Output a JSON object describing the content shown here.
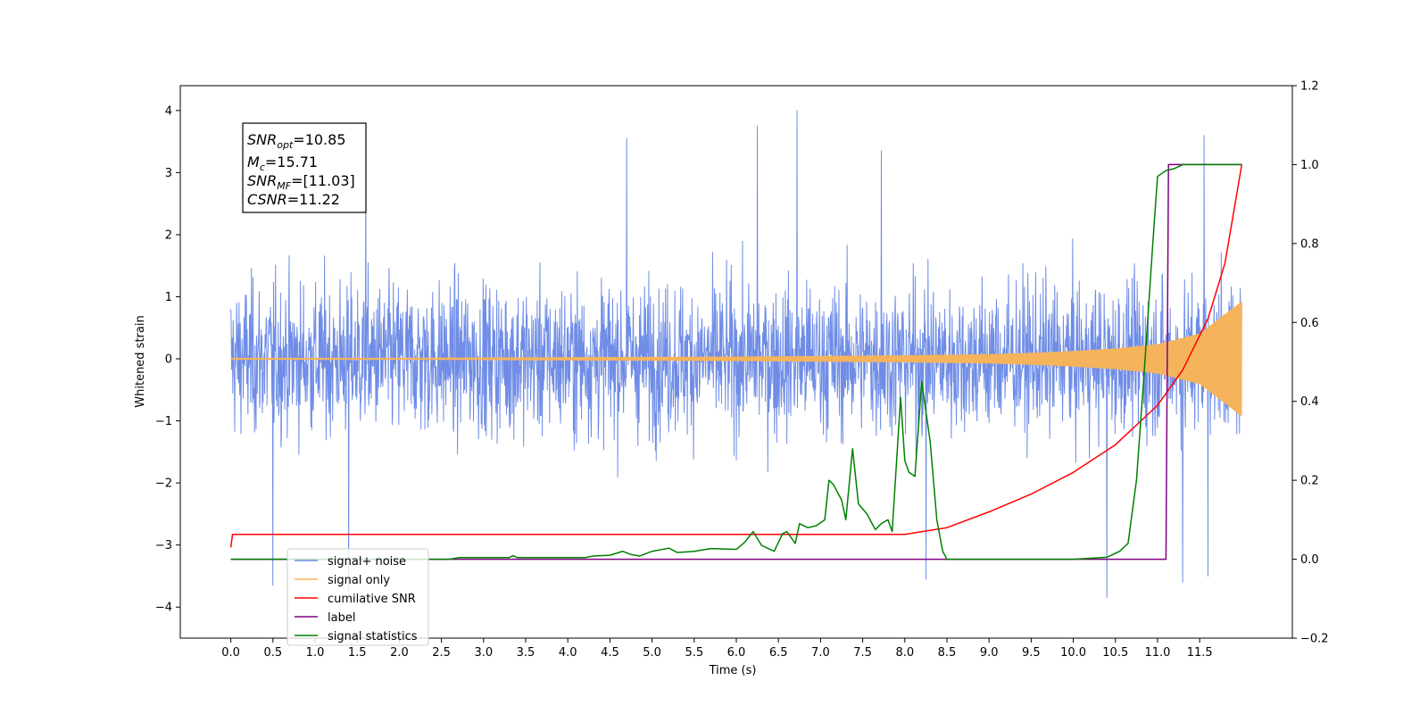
{
  "chart_data": {
    "type": "line",
    "title": "",
    "xlabel": "Time (s)",
    "ylabel": "Whitened strain",
    "ylabel_right": "",
    "xlim": [
      -0.6,
      12.6
    ],
    "ylim": [
      -4.5,
      4.4
    ],
    "ylim_right": [
      -0.2,
      1.2
    ],
    "grid": false,
    "legend_placement": "lower-left",
    "x_ticks": [
      "0.0",
      "0.5",
      "1.0",
      "1.5",
      "2.0",
      "2.5",
      "3.0",
      "3.5",
      "4.0",
      "4.5",
      "5.0",
      "5.5",
      "6.0",
      "6.5",
      "7.0",
      "7.5",
      "8.0",
      "8.5",
      "9.0",
      "9.5",
      "10.0",
      "10.5",
      "11.0",
      "11.5"
    ],
    "y_ticks_left": [
      "4",
      "3",
      "2",
      "1",
      "0",
      "−1",
      "−2",
      "−3",
      "−4"
    ],
    "y_ticks_right": [
      "1.2",
      "1.0",
      "0.8",
      "0.6",
      "0.4",
      "0.2",
      "0.0",
      "−0.2"
    ],
    "annotation": {
      "snr_opt": "=10.85",
      "mc": "=15.71",
      "snr_mf": "=[11.03]",
      "csnr": "=11.22"
    },
    "series": [
      {
        "name": "signal+ noise",
        "color": "#6f8de6",
        "axis": "left",
        "style": "noise",
        "x_range": [
          0.0,
          12.0
        ],
        "typical_range": [
          -2.0,
          2.0
        ],
        "peaks": [
          {
            "x": 0.5,
            "y": 3.85
          },
          {
            "x": 0.5,
            "y": -3.65
          },
          {
            "x": 1.4,
            "y": -3.75
          },
          {
            "x": 1.6,
            "y": 3.5
          },
          {
            "x": 4.7,
            "y": 3.55
          },
          {
            "x": 6.25,
            "y": 3.75
          },
          {
            "x": 6.72,
            "y": 4.0
          },
          {
            "x": 7.72,
            "y": 3.35
          },
          {
            "x": 8.25,
            "y": -3.55
          },
          {
            "x": 10.4,
            "y": -3.85
          },
          {
            "x": 11.3,
            "y": -3.6
          },
          {
            "x": 11.55,
            "y": 3.6
          },
          {
            "x": 11.6,
            "y": -3.5
          }
        ]
      },
      {
        "name": "signal only",
        "color": "#f5b35c",
        "axis": "left",
        "style": "chirp",
        "x": [
          0.0,
          2.0,
          4.0,
          6.0,
          7.0,
          8.0,
          8.5,
          9.0,
          9.5,
          10.0,
          10.5,
          11.0,
          11.5,
          12.0
        ],
        "envelope": [
          0.01,
          0.01,
          0.02,
          0.03,
          0.04,
          0.05,
          0.06,
          0.07,
          0.09,
          0.12,
          0.16,
          0.23,
          0.4,
          0.92
        ]
      },
      {
        "name": "cumilative SNR",
        "color": "#ff0000",
        "axis": "right",
        "x": [
          0.0,
          0.02,
          7.5,
          8.0,
          8.5,
          9.0,
          9.5,
          10.0,
          10.5,
          11.0,
          11.3,
          11.6,
          11.8,
          12.0
        ],
        "values": [
          0.03,
          0.063,
          0.063,
          0.063,
          0.08,
          0.12,
          0.165,
          0.22,
          0.29,
          0.39,
          0.48,
          0.61,
          0.75,
          1.0
        ]
      },
      {
        "name": "label",
        "color": "#800080",
        "axis": "right",
        "x": [
          0.0,
          11.1,
          11.13,
          11.2,
          12.0
        ],
        "values": [
          0.0,
          0.0,
          1.0,
          1.0,
          1.0
        ]
      },
      {
        "name": "signal statistics",
        "color": "#008000",
        "axis": "right",
        "x": [
          0.0,
          2.6,
          2.7,
          3.3,
          3.35,
          3.4,
          4.2,
          4.3,
          4.5,
          4.65,
          4.75,
          4.85,
          5.0,
          5.2,
          5.3,
          5.5,
          5.7,
          6.0,
          6.1,
          6.2,
          6.3,
          6.45,
          6.55,
          6.6,
          6.7,
          6.75,
          6.85,
          6.95,
          7.05,
          7.1,
          7.15,
          7.25,
          7.3,
          7.38,
          7.45,
          7.55,
          7.65,
          7.72,
          7.8,
          7.85,
          7.95,
          8.0,
          8.05,
          8.12,
          8.2,
          8.3,
          8.38,
          8.45,
          8.5,
          9.0,
          9.5,
          10.0,
          10.4,
          10.55,
          10.65,
          10.75,
          10.85,
          10.95,
          11.0,
          11.1,
          11.2,
          11.3,
          12.0
        ],
        "values": [
          0.0,
          0.0,
          0.004,
          0.004,
          0.009,
          0.004,
          0.004,
          0.008,
          0.01,
          0.02,
          0.012,
          0.008,
          0.02,
          0.028,
          0.017,
          0.02,
          0.027,
          0.025,
          0.043,
          0.07,
          0.035,
          0.02,
          0.065,
          0.07,
          0.04,
          0.09,
          0.08,
          0.085,
          0.1,
          0.2,
          0.19,
          0.15,
          0.1,
          0.28,
          0.14,
          0.115,
          0.075,
          0.09,
          0.1,
          0.07,
          0.41,
          0.25,
          0.22,
          0.21,
          0.45,
          0.3,
          0.1,
          0.02,
          0.0,
          0.0,
          0.0,
          0.0,
          0.005,
          0.02,
          0.04,
          0.2,
          0.5,
          0.82,
          0.97,
          0.985,
          0.99,
          1.0,
          1.0
        ]
      }
    ]
  }
}
